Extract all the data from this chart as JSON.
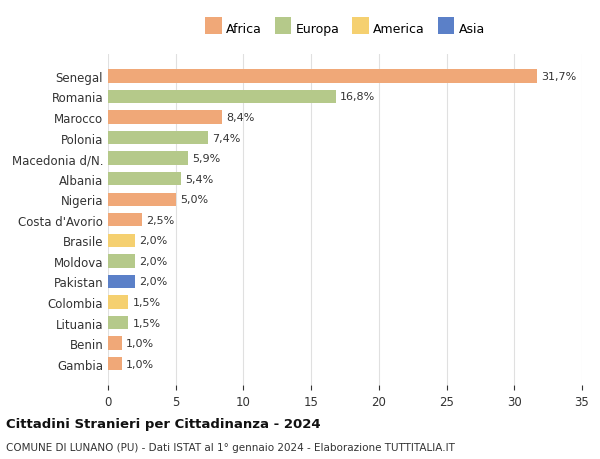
{
  "countries": [
    "Senegal",
    "Romania",
    "Marocco",
    "Polonia",
    "Macedonia d/N.",
    "Albania",
    "Nigeria",
    "Costa d'Avorio",
    "Brasile",
    "Moldova",
    "Pakistan",
    "Colombia",
    "Lituania",
    "Benin",
    "Gambia"
  ],
  "values": [
    31.7,
    16.8,
    8.4,
    7.4,
    5.9,
    5.4,
    5.0,
    2.5,
    2.0,
    2.0,
    2.0,
    1.5,
    1.5,
    1.0,
    1.0
  ],
  "labels": [
    "31,7%",
    "16,8%",
    "8,4%",
    "7,4%",
    "5,9%",
    "5,4%",
    "5,0%",
    "2,5%",
    "2,0%",
    "2,0%",
    "2,0%",
    "1,5%",
    "1,5%",
    "1,0%",
    "1,0%"
  ],
  "continents": [
    "Africa",
    "Europa",
    "Africa",
    "Europa",
    "Europa",
    "Europa",
    "Africa",
    "Africa",
    "America",
    "Europa",
    "Asia",
    "America",
    "Europa",
    "Africa",
    "Africa"
  ],
  "colors": {
    "Africa": "#F0A878",
    "Europa": "#B5C98A",
    "America": "#F5D070",
    "Asia": "#5B80C8"
  },
  "legend_order": [
    "Africa",
    "Europa",
    "America",
    "Asia"
  ],
  "title": "Cittadini Stranieri per Cittadinanza - 2024",
  "subtitle": "COMUNE DI LUNANO (PU) - Dati ISTAT al 1° gennaio 2024 - Elaborazione TUTTITALIA.IT",
  "xlim": [
    0,
    35
  ],
  "xticks": [
    0,
    5,
    10,
    15,
    20,
    25,
    30,
    35
  ],
  "bg_color": "#FFFFFF",
  "grid_color": "#E0E0E0",
  "bar_height": 0.65
}
